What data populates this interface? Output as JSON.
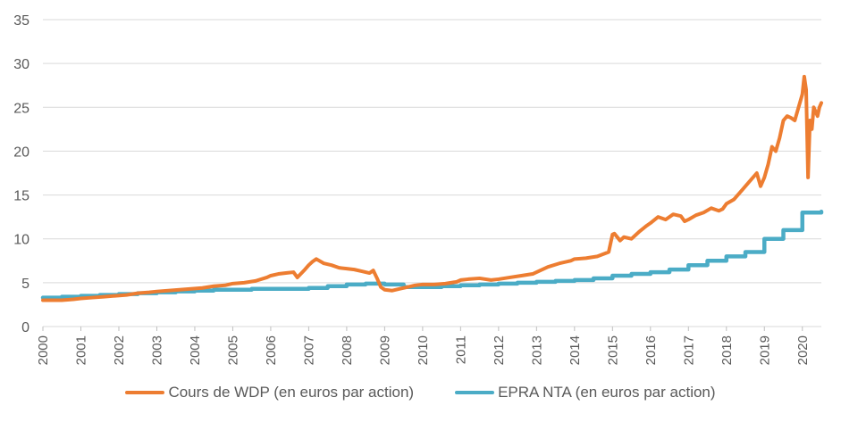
{
  "chart_data": {
    "type": "line",
    "ylim": [
      0,
      35
    ],
    "yticks": [
      "0",
      "5",
      "10",
      "15",
      "20",
      "25",
      "30",
      "35"
    ],
    "xlim": [
      2000,
      2020.5
    ],
    "xticks": [
      "2000",
      "2001",
      "2002",
      "2003",
      "2004",
      "2005",
      "2006",
      "2007",
      "2008",
      "2009",
      "2010",
      "2011",
      "2012",
      "2013",
      "2014",
      "2015",
      "2016",
      "2017",
      "2018",
      "2019",
      "2020"
    ],
    "grid": true,
    "legend_position": "bottom",
    "series": [
      {
        "name": "Cours de WDP (en euros par action)",
        "color": "#ED7D31",
        "x": [
          2000.0,
          2000.2,
          2000.5,
          2000.8,
          2001.0,
          2001.3,
          2001.6,
          2001.9,
          2002.2,
          2002.5,
          2002.8,
          2003.0,
          2003.3,
          2003.6,
          2003.9,
          2004.2,
          2004.5,
          2004.8,
          2005.0,
          2005.3,
          2005.6,
          2005.9,
          2006.0,
          2006.2,
          2006.4,
          2006.6,
          2006.7,
          2006.9,
          2007.0,
          2007.1,
          2007.2,
          2007.4,
          2007.6,
          2007.8,
          2008.0,
          2008.2,
          2008.4,
          2008.6,
          2008.7,
          2008.8,
          2008.9,
          2009.0,
          2009.2,
          2009.4,
          2009.6,
          2009.8,
          2010.0,
          2010.3,
          2010.6,
          2010.9,
          2011.0,
          2011.2,
          2011.5,
          2011.8,
          2012.0,
          2012.3,
          2012.6,
          2012.9,
          2013.0,
          2013.3,
          2013.6,
          2013.9,
          2014.0,
          2014.3,
          2014.6,
          2014.9,
          2015.0,
          2015.05,
          2015.2,
          2015.3,
          2015.5,
          2015.7,
          2015.9,
          2016.0,
          2016.2,
          2016.4,
          2016.6,
          2016.8,
          2016.9,
          2017.0,
          2017.2,
          2017.4,
          2017.6,
          2017.8,
          2017.9,
          2018.0,
          2018.2,
          2018.4,
          2018.6,
          2018.8,
          2018.9,
          2019.0,
          2019.1,
          2019.2,
          2019.3,
          2019.4,
          2019.5,
          2019.6,
          2019.7,
          2019.8,
          2019.9,
          2020.0,
          2020.05,
          2020.1,
          2020.15,
          2020.2,
          2020.25,
          2020.3,
          2020.35,
          2020.4,
          2020.45,
          2020.5
        ],
        "y": [
          3.0,
          3.0,
          3.0,
          3.1,
          3.2,
          3.3,
          3.4,
          3.5,
          3.6,
          3.8,
          3.9,
          4.0,
          4.1,
          4.2,
          4.3,
          4.4,
          4.6,
          4.7,
          4.9,
          5.0,
          5.2,
          5.6,
          5.8,
          6.0,
          6.1,
          6.2,
          5.6,
          6.5,
          7.0,
          7.4,
          7.7,
          7.2,
          7.0,
          6.7,
          6.6,
          6.5,
          6.3,
          6.1,
          6.4,
          5.5,
          4.5,
          4.2,
          4.1,
          4.3,
          4.5,
          4.7,
          4.8,
          4.8,
          4.9,
          5.1,
          5.3,
          5.4,
          5.5,
          5.3,
          5.4,
          5.6,
          5.8,
          6.0,
          6.2,
          6.8,
          7.2,
          7.5,
          7.7,
          7.8,
          8.0,
          8.5,
          10.5,
          10.6,
          9.8,
          10.2,
          10.0,
          10.8,
          11.5,
          11.8,
          12.5,
          12.2,
          12.8,
          12.6,
          12.0,
          12.2,
          12.7,
          13.0,
          13.5,
          13.2,
          13.4,
          14.0,
          14.5,
          15.5,
          16.5,
          17.5,
          16.0,
          17.0,
          18.5,
          20.5,
          20.0,
          21.5,
          23.5,
          24.0,
          23.8,
          23.5,
          25.0,
          26.5,
          28.5,
          27.0,
          17.0,
          23.5,
          22.5,
          25.0,
          24.5,
          24.0,
          25.0,
          25.5
        ]
      },
      {
        "name": "EPRA NTA (en euros par action)",
        "color": "#4BACC6",
        "x": [
          2000.0,
          2000.5,
          2001.0,
          2001.5,
          2002.0,
          2002.5,
          2003.0,
          2003.5,
          2004.0,
          2004.5,
          2005.0,
          2005.5,
          2006.0,
          2006.5,
          2007.0,
          2007.5,
          2008.0,
          2008.5,
          2009.0,
          2009.5,
          2010.0,
          2010.5,
          2011.0,
          2011.5,
          2012.0,
          2012.5,
          2013.0,
          2013.5,
          2014.0,
          2014.5,
          2015.0,
          2015.5,
          2016.0,
          2016.5,
          2017.0,
          2017.5,
          2018.0,
          2018.5,
          2019.0,
          2019.5,
          2020.0,
          2020.5
        ],
        "y": [
          3.3,
          3.4,
          3.5,
          3.6,
          3.7,
          3.8,
          3.9,
          4.0,
          4.1,
          4.2,
          4.2,
          4.3,
          4.3,
          4.3,
          4.4,
          4.6,
          4.8,
          4.9,
          4.8,
          4.5,
          4.5,
          4.6,
          4.7,
          4.8,
          4.9,
          5.0,
          5.1,
          5.2,
          5.3,
          5.5,
          5.8,
          6.0,
          6.2,
          6.5,
          7.0,
          7.5,
          8.0,
          8.5,
          10.0,
          11.0,
          13.0,
          13.1
        ]
      }
    ]
  }
}
